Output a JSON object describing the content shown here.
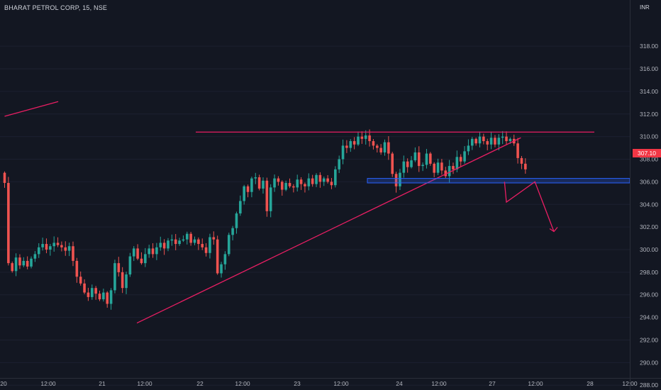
{
  "header": {
    "title": "BHARAT PETROL CORP, 15, NSE",
    "currency": "INR"
  },
  "last_price": "307.10",
  "colors": {
    "background": "#131722",
    "up": "#26a69a",
    "down": "#ef5350",
    "trendline": "#e91e63",
    "support_zone": "#2962ff",
    "axis_text": "#b2b5be"
  },
  "chart_data": {
    "type": "candlestick",
    "symbol": "BHARAT PETROL CORP",
    "interval": "15",
    "exchange": "NSE",
    "ylim": [
      286.5,
      320
    ],
    "y_ticks": [
      "318.00",
      "316.00",
      "314.00",
      "312.00",
      "310.00",
      "308.00",
      "306.00",
      "304.00",
      "302.00",
      "300.00",
      "298.00",
      "296.00",
      "294.00",
      "292.00",
      "290.00",
      "288.00"
    ],
    "x_ticks": [
      "20",
      "12:00",
      "21",
      "12:00",
      "22",
      "12:00",
      "23",
      "12:00",
      "24",
      "12:00",
      "27",
      "12:00",
      "28",
      "12:00"
    ],
    "closes": [
      305.9,
      298.8,
      298.1,
      299.3,
      298.6,
      299.0,
      298.5,
      299.2,
      299.6,
      300.2,
      300.5,
      300.0,
      300.3,
      300.6,
      300.4,
      300.2,
      299.9,
      300.3,
      299.0,
      297.6,
      297.0,
      296.2,
      295.8,
      296.6,
      296.1,
      295.6,
      296.2,
      295.2,
      296.4,
      298.8,
      298.0,
      296.6,
      297.8,
      299.4,
      300.1,
      299.2,
      298.8,
      299.6,
      300.1,
      299.6,
      300.2,
      300.6,
      300.1,
      300.8,
      300.9,
      300.5,
      300.8,
      300.9,
      301.4,
      300.6,
      300.9,
      300.5,
      300.2,
      299.7,
      301.1,
      300.9,
      297.9,
      298.7,
      299.6,
      301.3,
      301.9,
      303.2,
      304.3,
      305.6,
      305.1,
      306.3,
      306.4,
      305.4,
      306.1,
      303.4,
      305.5,
      306.3,
      306.0,
      305.3,
      305.9,
      305.6,
      305.5,
      306.2,
      305.8,
      305.6,
      306.3,
      305.8,
      306.6,
      306.0,
      306.3,
      306.0,
      305.7,
      307.1,
      308.0,
      309.2,
      309.0,
      309.6,
      309.3,
      310.0,
      309.8,
      310.1,
      309.6,
      309.2,
      309.0,
      308.6,
      309.5,
      308.5,
      306.7,
      305.6,
      306.8,
      307.8,
      307.3,
      307.9,
      308.6,
      307.4,
      307.5,
      308.5,
      307.6,
      306.8,
      307.7,
      307.0,
      306.5,
      307.4,
      307.1,
      308.2,
      307.8,
      308.7,
      309.2,
      309.8,
      309.4,
      310.0,
      309.6,
      309.3,
      309.9,
      309.3,
      309.9,
      310.0,
      309.6,
      309.8,
      309.4,
      308.1,
      307.6,
      307.1
    ],
    "annotations": [
      {
        "type": "trendline",
        "label": "ascending support",
        "points": [
          [
            34.8,
            293.5
          ],
          [
            135.8,
            309.9
          ]
        ]
      },
      {
        "type": "horizontal",
        "label": "resistance",
        "price": 310.4
      },
      {
        "type": "zone",
        "label": "support zone",
        "from": 305.9,
        "to": 306.3
      },
      {
        "type": "trendline",
        "label": "prior trend",
        "points": [
          [
            0,
            311.8
          ],
          [
            14.1,
            313.1
          ]
        ]
      },
      {
        "type": "projection",
        "label": "projected path",
        "points": [
          [
            131.5,
            306.0
          ],
          [
            132.0,
            304.2
          ],
          [
            139.5,
            306.0
          ],
          [
            144.5,
            301.6
          ]
        ]
      }
    ]
  }
}
